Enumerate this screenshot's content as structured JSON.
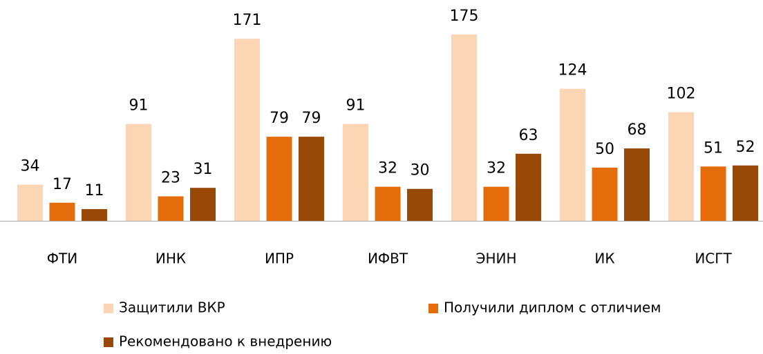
{
  "chart_data": {
    "type": "bar",
    "categories": [
      "ФТИ",
      "ИНК",
      "ИПР",
      "ИФВТ",
      "ЭНИН",
      "ИК",
      "ИСГТ"
    ],
    "series": [
      {
        "name": "Защитили ВКР",
        "color": "#fcd5b5",
        "values": [
          34,
          91,
          171,
          91,
          175,
          124,
          102
        ]
      },
      {
        "name": "Получили диплом с отличием",
        "color": "#e46c0a",
        "values": [
          17,
          23,
          79,
          32,
          32,
          50,
          51
        ]
      },
      {
        "name": "Рекомендовано к внедрению",
        "color": "#984807",
        "values": [
          11,
          31,
          79,
          30,
          63,
          68,
          52
        ]
      }
    ]
  }
}
